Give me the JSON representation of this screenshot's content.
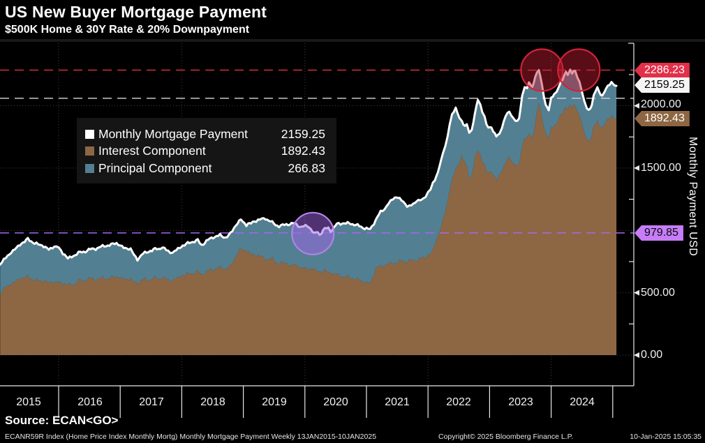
{
  "header": {
    "title": "US New Buyer Mortgage Payment",
    "subtitle": "$500K Home & 30Y Rate & 20% Downpayment"
  },
  "legend": {
    "items": [
      {
        "label": "Monthly Mortgage Payment",
        "value": "2159.25",
        "color": "#FFFFFF"
      },
      {
        "label": "Interest Component",
        "value": "1892.43",
        "color": "#8D6743"
      },
      {
        "label": "Principal Component",
        "value": "266.83",
        "color": "#537F92"
      }
    ]
  },
  "y_axis": {
    "title": "Monthly Payment USD",
    "tick_labels": [
      "2000.00",
      "1500.00",
      "500.00",
      "0.00"
    ],
    "badges": [
      {
        "text": "2286.23",
        "bg": "#E3304A",
        "fg": "#FFFFFF"
      },
      {
        "text": "2159.25",
        "bg": "#F5F5F5",
        "fg": "#000000"
      },
      {
        "text": "1892.43",
        "bg": "#8D6743",
        "fg": "#FFFFFF"
      },
      {
        "text": "979.85",
        "bg": "#C77CF8",
        "fg": "#0A0A0A"
      }
    ]
  },
  "x_axis": {
    "years": [
      "2015",
      "2016",
      "2017",
      "2018",
      "2019",
      "2020",
      "2021",
      "2022",
      "2023",
      "2024"
    ]
  },
  "footer": {
    "source": "Source: ECAN<GO>",
    "left": "ECANR59R Index (Home Price Index Monthly Mortg) Monthly Mortgage Payment  Weekly 13JAN2015-10JAN2025",
    "center": "Copyright© 2025 Bloomberg Finance L.P.",
    "right": "10-Jan-2025 15:05:35"
  },
  "colors": {
    "background": "#000000",
    "line_white": "#FFFFFF",
    "interest_brown": "#8D6743",
    "principal_teal": "#537F92",
    "alert_red": "#E3304A",
    "annotation_purple": "#C77CF8",
    "gray_dash": "#C9C9C9",
    "grid": "#424242"
  },
  "chart_data": {
    "type": "area",
    "subtype": "stacked-area-with-total-line",
    "title": "US New Buyer Mortgage Payment",
    "xlabel": "",
    "ylabel": "Monthly Payment USD",
    "xlim": [
      2015.04,
      2025.3
    ],
    "ylim": [
      0,
      2500
    ],
    "grid": "dotted",
    "legend_position": "upper-left-inset",
    "x": [
      2015.05,
      2015.14,
      2015.23,
      2015.37,
      2015.5,
      2015.61,
      2015.73,
      2015.84,
      2015.93,
      2016.0,
      2016.07,
      2016.15,
      2016.24,
      2016.35,
      2016.49,
      2016.63,
      2016.77,
      2016.94,
      2017.03,
      2017.17,
      2017.28,
      2017.37,
      2017.49,
      2017.62,
      2017.69,
      2017.78,
      2017.85,
      2017.94,
      2018.07,
      2018.18,
      2018.26,
      2018.32,
      2018.4,
      2018.51,
      2018.62,
      2018.71,
      2018.79,
      2018.88,
      2018.96,
      2019.05,
      2019.15,
      2019.27,
      2019.36,
      2019.47,
      2019.58,
      2019.7,
      2019.81,
      2019.92,
      2020.04,
      2020.15,
      2020.21,
      2020.24,
      2020.3,
      2020.38,
      2020.42,
      2020.52,
      2020.64,
      2020.8,
      2020.94,
      2021.06,
      2021.15,
      2021.23,
      2021.29,
      2021.36,
      2021.43,
      2021.49,
      2021.54,
      2021.6,
      2021.66,
      2021.7,
      2021.76,
      2021.82,
      2021.87,
      2021.92,
      2021.96,
      2022.0,
      2022.04,
      2022.08,
      2022.11,
      2022.16,
      2022.19,
      2022.24,
      2022.28,
      2022.32,
      2022.35,
      2022.39,
      2022.45,
      2022.51,
      2022.55,
      2022.6,
      2022.63,
      2022.67,
      2022.71,
      2022.76,
      2022.81,
      2022.85,
      2022.88,
      2022.92,
      2022.95,
      2022.98,
      2023.03,
      2023.06,
      2023.11,
      2023.16,
      2023.2,
      2023.26,
      2023.32,
      2023.39,
      2023.45,
      2023.48,
      2023.53,
      2023.57,
      2023.61,
      2023.64,
      2023.69,
      2023.74,
      2023.8,
      2023.85,
      2023.88,
      2023.91,
      2023.96,
      2024.0,
      2024.05,
      2024.09,
      2024.13,
      2024.16,
      2024.21,
      2024.24,
      2024.27,
      2024.31,
      2024.34,
      2024.39,
      2024.43,
      2024.46,
      2024.5,
      2024.54,
      2024.58,
      2024.61,
      2024.66,
      2024.69,
      2024.73,
      2024.75,
      2024.78,
      2024.83,
      2024.87,
      2024.92,
      2024.95,
      2024.98,
      2025.03,
      2025.06
    ],
    "series": [
      {
        "name": "Monthly Mortgage Payment",
        "role": "total-line",
        "color": "#FFFFFF",
        "current": 2159.25,
        "values": [
          733,
          775,
          825,
          885,
          930,
          898,
          878,
          850,
          870,
          862,
          820,
          773,
          800,
          822,
          843,
          860,
          878,
          896,
          870,
          846,
          767,
          810,
          838,
          855,
          863,
          838,
          823,
          855,
          891,
          910,
          920,
          880,
          915,
          947,
          960,
          940,
          975,
          1040,
          1090,
          1043,
          1065,
          1085,
          1100,
          1060,
          1035,
          1045,
          1060,
          1030,
          1041,
          975,
          994,
          966,
          1003,
          1022,
          994,
          1050,
          1060,
          1050,
          1022,
          1013,
          1078,
          1153,
          1175,
          1219,
          1257,
          1275,
          1247,
          1228,
          1200,
          1191,
          1210,
          1247,
          1238,
          1250,
          1275,
          1303,
          1332,
          1379,
          1407,
          1463,
          1529,
          1610,
          1680,
          1760,
          1857,
          1922,
          1979,
          1913,
          1876,
          1832,
          1850,
          1791,
          1812,
          1922,
          2054,
          2007,
          1958,
          1900,
          1847,
          1819,
          1840,
          1791,
          1753,
          1775,
          1830,
          1922,
          1950,
          1902,
          1868,
          1895,
          2082,
          2157,
          2129,
          2185,
          2147,
          2232,
          2286,
          2170,
          2090,
          2007,
          1966,
          2054,
          2101,
          2119,
          2150,
          2185,
          2241,
          2279,
          2251,
          2286,
          2260,
          2279,
          2223,
          2185,
          2110,
          2035,
          1988,
          1970,
          1997,
          2072,
          2129,
          2147,
          2119,
          2072,
          2119,
          2157,
          2175,
          2185,
          2166,
          2159.25
        ]
      },
      {
        "name": "Interest Component",
        "role": "stacked-area-bottom",
        "color": "#8D6743",
        "current": 1892.43,
        "values": [
          497,
          540,
          570,
          615,
          625,
          605,
          592,
          588,
          585,
          581,
          578,
          560,
          575,
          595,
          610,
          612,
          618,
          625,
          618,
          605,
          580,
          598,
          610,
          618,
          622,
          610,
          605,
          625,
          649,
          658,
          665,
          645,
          668,
          690,
          700,
          690,
          715,
          790,
          860,
          835,
          805,
          790,
          778,
          765,
          740,
          730,
          722,
          710,
          694,
          685,
          680,
          678,
          672,
          668,
          665,
          640,
          632,
          615,
          591,
          580,
          690,
          715,
          728,
          738,
          742,
          745,
          747,
          749,
          752,
          755,
          760,
          769,
          772,
          778,
          788,
          797,
          820,
          844,
          891,
          947,
          1003,
          1078,
          1153,
          1247,
          1332,
          1397,
          1490,
          1560,
          1600,
          1540,
          1515,
          1425,
          1453,
          1566,
          1650,
          1604,
          1557,
          1510,
          1472,
          1455,
          1491,
          1444,
          1397,
          1445,
          1490,
          1547,
          1585,
          1547,
          1510,
          1528,
          1679,
          1753,
          1725,
          1772,
          1735,
          1856,
          2020,
          1910,
          1840,
          1782,
          1735,
          1810,
          1850,
          1866,
          1890,
          1920,
          1970,
          2000,
          1975,
          2005,
          1985,
          2000,
          1950,
          1915,
          1850,
          1780,
          1740,
          1725,
          1750,
          1815,
          1866,
          1880,
          1856,
          1815,
          1856,
          1890,
          1905,
          1915,
          1898,
          1892.43
        ]
      },
      {
        "name": "Principal Component",
        "role": "stacked-area-band-total-minus-interest",
        "color": "#537F92",
        "current": 266.83
      }
    ],
    "annotations": {
      "hlines": [
        {
          "value": 2286.23,
          "color": "#D4303F",
          "style": "dashed",
          "label": "2286.23"
        },
        {
          "value": 2060,
          "color": "#C9C9C9",
          "style": "dashed",
          "label": ""
        },
        {
          "value": 979.85,
          "color": "#A964F2",
          "style": "dashed",
          "label": "979.85"
        }
      ],
      "circles": [
        {
          "x": 2023.85,
          "y": 2286,
          "r": 30,
          "stroke": "#D22239",
          "fill": "rgba(195,28,52,0.45)"
        },
        {
          "x": 2024.45,
          "y": 2286,
          "r": 30,
          "stroke": "#D22239",
          "fill": "rgba(195,28,52,0.45)"
        },
        {
          "x": 2020.13,
          "y": 975,
          "r": 30,
          "stroke": "#B183E8",
          "fill": "rgba(160,100,230,0.5)"
        }
      ],
      "gridlines_h_values": [
        0,
        500,
        1000,
        1500,
        2000
      ],
      "gridlines_v_years": [
        2016,
        2018,
        2020,
        2022,
        2024
      ]
    }
  }
}
